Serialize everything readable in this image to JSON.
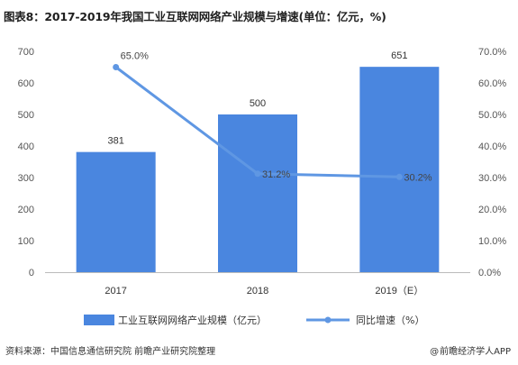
{
  "title": "图表8：2017-2019年我国工业互联网网络产业规模与增速(单位：亿元，%)",
  "source": "资料来源：中国信息通信研究院 前瞻产业研究院整理",
  "credit": "前瞻经济学人APP",
  "credit_icon": "at-sign-icon",
  "colors": {
    "bar": "#4a86df",
    "line": "#5f97e3",
    "axis": "#bbbbbb"
  },
  "chart_data": {
    "type": "bar",
    "categories": [
      "2017",
      "2018",
      "2019（E）"
    ],
    "series": [
      {
        "name": "工业互联网网络产业规模（亿元）",
        "type": "bar",
        "axis": "left",
        "values": [
          381,
          500,
          651
        ],
        "labels": [
          "381",
          "500",
          "651"
        ]
      },
      {
        "name": "同比增速（%）",
        "type": "line",
        "axis": "right",
        "values": [
          65.0,
          31.2,
          30.2
        ],
        "labels": [
          "65.0%",
          "31.2%",
          "30.2%"
        ]
      }
    ],
    "y_left": {
      "min": 0,
      "max": 700,
      "step": 100,
      "ticks": [
        "0",
        "100",
        "200",
        "300",
        "400",
        "500",
        "600",
        "700"
      ]
    },
    "y_right": {
      "min": 0,
      "max": 70,
      "step": 10,
      "ticks": [
        "0.0%",
        "10.0%",
        "20.0%",
        "30.0%",
        "40.0%",
        "50.0%",
        "60.0%",
        "70.0%"
      ]
    },
    "grid": false,
    "legend_position": "bottom"
  }
}
